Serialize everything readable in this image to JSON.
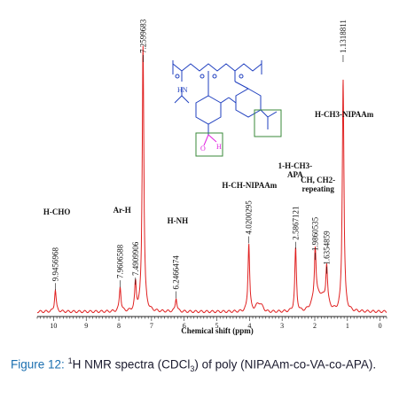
{
  "chart_data": {
    "type": "line",
    "xlabel": "Chemical shift (ppm)",
    "xlim": [
      10.5,
      -0.2
    ],
    "x_reversed": true,
    "x_ticks": [
      10,
      9,
      8,
      7,
      6,
      5,
      4,
      3,
      2,
      1,
      0
    ],
    "series_color": "#e02020",
    "peaks": [
      {
        "ppm": 9.9456968,
        "label": "9.9456968",
        "height": 0.08
      },
      {
        "ppm": 7.9606588,
        "label": "7.9606588",
        "height": 0.09
      },
      {
        "ppm": 7.4909906,
        "label": "7.4909906",
        "height": 0.1
      },
      {
        "ppm": 7.2599683,
        "label": "7.2599683",
        "height": 0.97
      },
      {
        "ppm": 6.2466474,
        "label": "6.2466474",
        "height": 0.05
      },
      {
        "ppm": 4.0200295,
        "label": "4.0200295",
        "height": 0.25
      },
      {
        "ppm": 2.5867121,
        "label": "2.5867121",
        "height": 0.23
      },
      {
        "ppm": 1.9860535,
        "label": "1.9860535",
        "height": 0.19
      },
      {
        "ppm": 1.6354859,
        "label": "1.6354859",
        "height": 0.14
      },
      {
        "ppm": 1.1318811,
        "label": "1.1318811",
        "height": 0.85
      }
    ],
    "assignments": [
      {
        "text": "H-CHO",
        "ppm": 9.9
      },
      {
        "text": "Ar-H",
        "ppm": 7.9
      },
      {
        "text": "H-NH",
        "ppm": 6.2
      },
      {
        "text": "H-CH-NIPAAm",
        "ppm": 4.0
      },
      {
        "text": "1-H-CH3-",
        "ppm": 2.6
      },
      {
        "text": "APA",
        "ppm": 2.6
      },
      {
        "text": "CH, CH2-",
        "ppm": 1.9
      },
      {
        "text": "repeating",
        "ppm": 1.9
      },
      {
        "text": "H-CH3-NIPAAm",
        "ppm": 1.1
      }
    ]
  },
  "structure": {
    "labels": {
      "nh": "HN",
      "o": "O",
      "h": "H"
    },
    "colors": {
      "backbone": "#1f3fbf",
      "aldehyde": "#e020e0",
      "box": "#3a8a3a"
    }
  },
  "caption": {
    "figure": "Figure 12:",
    "sup": "1",
    "text1": "H NMR spectra (CDCl",
    "sub": "3",
    "text2": ") of poly (NIPAAm-co-VA-co-APA)."
  }
}
